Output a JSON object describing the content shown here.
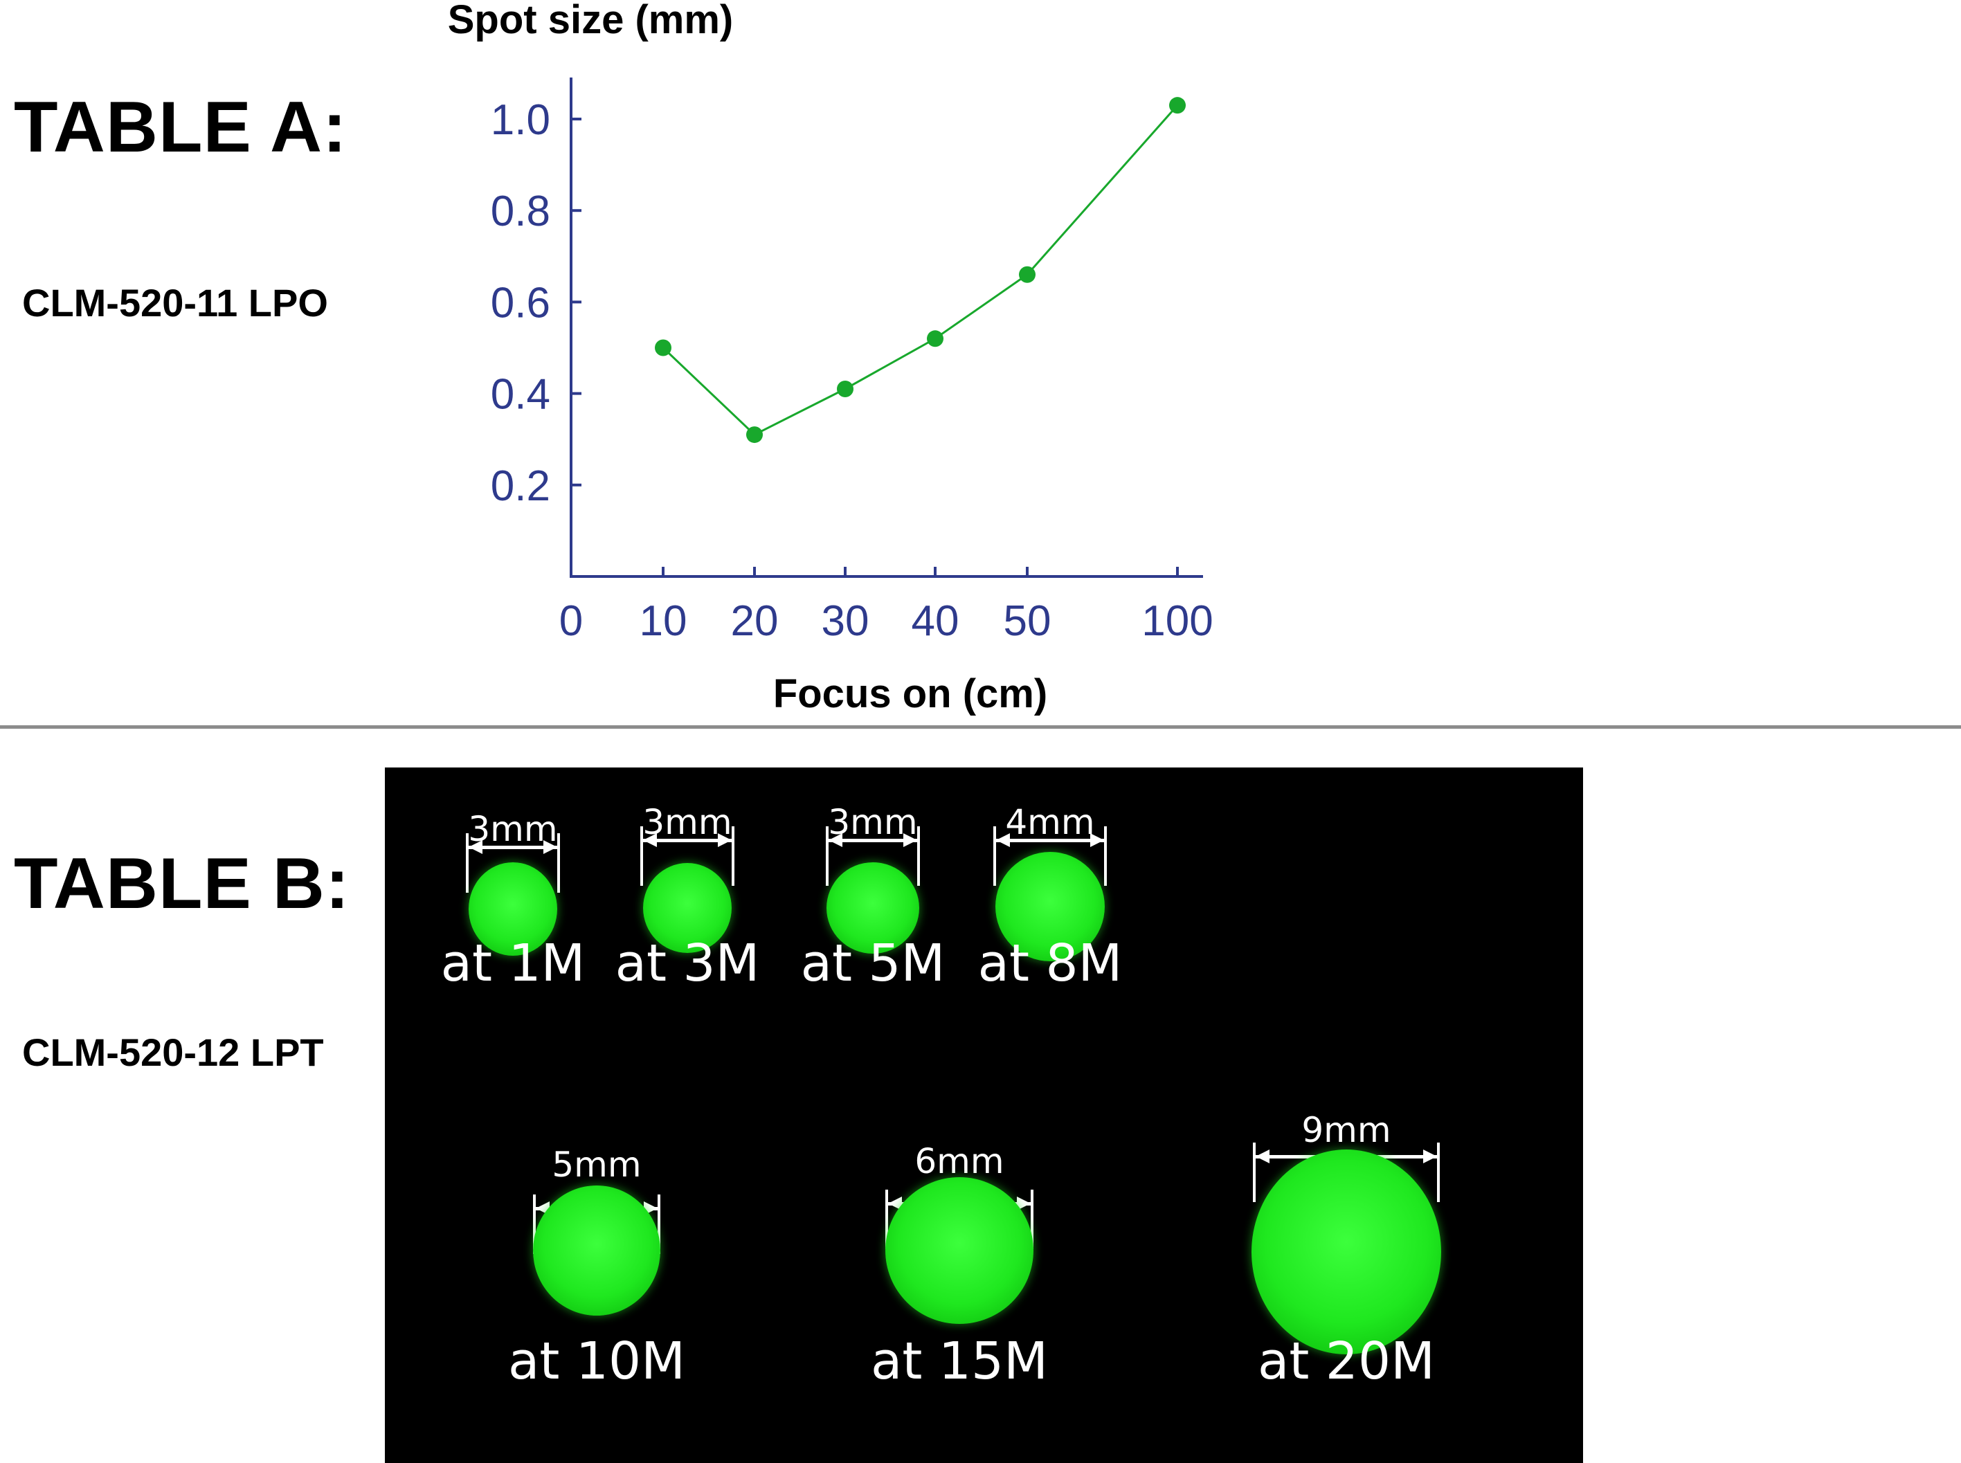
{
  "table_a": {
    "heading": "TABLE A:",
    "model": "CLM-520-11 LPO"
  },
  "table_b": {
    "heading": "TABLE B:",
    "model": "CLM-520-12 LPT",
    "spots": [
      {
        "size": "3mm",
        "distance": "at 1M",
        "diameter_mm": 3
      },
      {
        "size": "3mm",
        "distance": "at 3M",
        "diameter_mm": 3
      },
      {
        "size": "3mm",
        "distance": "at 5M",
        "diameter_mm": 3
      },
      {
        "size": "4mm",
        "distance": "at 8M",
        "diameter_mm": 4
      },
      {
        "size": "5mm",
        "distance": "at 10M",
        "diameter_mm": 5
      },
      {
        "size": "6mm",
        "distance": "at 15M",
        "diameter_mm": 6
      },
      {
        "size": "9mm",
        "distance": "at 20M",
        "diameter_mm": 9
      }
    ],
    "spot_color": "#22ee22",
    "background_color": "#000000"
  },
  "chart_data": {
    "type": "line",
    "title": "",
    "xlabel": "Focus on (cm)",
    "ylabel": "Spot size (mm)",
    "x_ticks": [
      "0",
      "10",
      "20",
      "30",
      "40",
      "50",
      "100"
    ],
    "y_ticks": [
      "0.2",
      "0.4",
      "0.6",
      "0.8",
      "1.0"
    ],
    "x": [
      10,
      20,
      30,
      40,
      50,
      100
    ],
    "series": [
      {
        "values": [
          0.5,
          0.31,
          0.41,
          0.52,
          0.66,
          1.03
        ]
      }
    ],
    "ylim": [
      0,
      1.1
    ],
    "x_axis_note": "x axis is categorical-spaced: 0-50 evenly, then 100",
    "grid": false,
    "axis_color": "#2e3a8c",
    "series_color": "#18a82c"
  }
}
